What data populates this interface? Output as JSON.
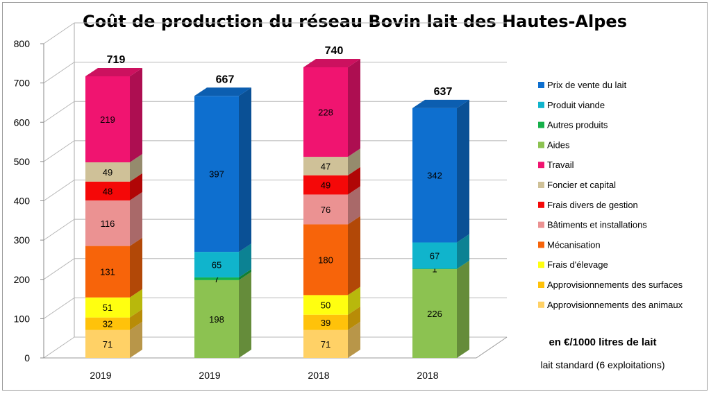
{
  "chart_data": {
    "type": "bar",
    "stacked": true,
    "three_d": true,
    "title": "Coût de production du réseau Bovin lait des Hautes-Alpes",
    "categories": [
      "2019",
      "2019",
      "2018",
      "2018"
    ],
    "ylim": [
      0,
      800
    ],
    "yticks": [
      0,
      100,
      200,
      300,
      400,
      500,
      600,
      700,
      800
    ],
    "grid": true,
    "legend_position": "right",
    "totals": [
      719,
      667,
      740,
      637
    ],
    "series": [
      {
        "name": "Prix de vente du lait",
        "color": "#0e6fcf",
        "values": [
          null,
          397,
          null,
          342
        ]
      },
      {
        "name": "Produit viande",
        "color": "#10b4cc",
        "values": [
          null,
          65,
          null,
          67
        ]
      },
      {
        "name": "Autres produits",
        "color": "#16b04a",
        "values": [
          null,
          7,
          null,
          1
        ]
      },
      {
        "name": "Aides",
        "color": "#8cc251",
        "values": [
          null,
          198,
          null,
          226
        ]
      },
      {
        "name": "Travail",
        "color": "#f01470",
        "values": [
          219,
          null,
          228,
          null
        ]
      },
      {
        "name": "Foncier et capital",
        "color": "#cfc198",
        "values": [
          49,
          null,
          47,
          null
        ]
      },
      {
        "name": "Frais divers de gestion",
        "color": "#f50808",
        "values": [
          48,
          null,
          49,
          null
        ]
      },
      {
        "name": "Bâtiments et installations",
        "color": "#eb9292",
        "values": [
          116,
          null,
          76,
          null
        ]
      },
      {
        "name": "Mécanisation",
        "color": "#f7640a",
        "values": [
          131,
          null,
          180,
          null
        ]
      },
      {
        "name": "Frais d'élevage",
        "color": "#ffff10",
        "values": [
          51,
          null,
          50,
          null
        ]
      },
      {
        "name": "Approvisionnements des surfaces",
        "color": "#ffc20a",
        "values": [
          32,
          null,
          39,
          null
        ]
      },
      {
        "name": "Approvisionnements des animaux",
        "color": "#ffd166",
        "values": [
          71,
          null,
          71,
          null
        ]
      }
    ],
    "stack_order_bottom_to_top": [
      [
        "Approvisionnements des animaux",
        "Approvisionnements des surfaces",
        "Frais d'élevage",
        "Mécanisation",
        "Bâtiments et installations",
        "Frais divers de gestion",
        "Foncier et capital",
        "Travail"
      ],
      [
        "Aides",
        "Autres produits",
        "Produit viande",
        "Prix de vente du lait"
      ],
      [
        "Approvisionnements des animaux",
        "Approvisionnements des surfaces",
        "Frais d'élevage",
        "Mécanisation",
        "Bâtiments et installations",
        "Frais divers de gestion",
        "Foncier et capital",
        "Travail"
      ],
      [
        "Aides",
        "Autres produits",
        "Produit viande",
        "Prix de vente du lait"
      ]
    ],
    "notes": [
      "en €/1000 litres de lait",
      "lait standard (6 exploitations)"
    ]
  }
}
